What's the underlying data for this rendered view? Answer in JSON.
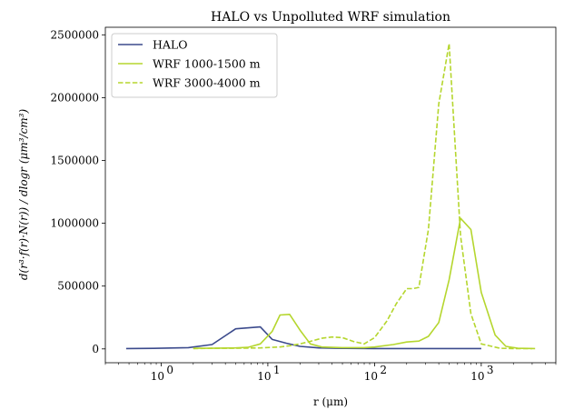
{
  "chart_data": {
    "type": "line",
    "title": "HALO vs Unpolluted WRF simulation",
    "xlabel": "r (μm)",
    "ylabel": "d(r³·f(r)·N(r)) / dlogr  (μm³/cm³)",
    "xscale": "log",
    "xlim": [
      0.3,
      5000
    ],
    "ylim": [
      -110000,
      2560000
    ],
    "grid": false,
    "legend_position": "top-left",
    "xtick_labels": [
      {
        "value": 1,
        "base": "10",
        "exp": "0"
      },
      {
        "value": 10,
        "base": "10",
        "exp": "1"
      },
      {
        "value": 100,
        "base": "10",
        "exp": "2"
      },
      {
        "value": 1000,
        "base": "10",
        "exp": "3"
      }
    ],
    "yticks": [
      0,
      500000,
      1000000,
      1500000,
      2000000,
      2500000
    ],
    "series": [
      {
        "name": "HALO",
        "color": "#3b4a8c",
        "dash": "solid",
        "x": [
          0.47,
          0.85,
          1.8,
          3.0,
          5.0,
          8.5,
          11,
          15,
          20,
          30,
          50,
          100,
          200,
          500,
          1000
        ],
        "y": [
          3000,
          4000,
          10000,
          35000,
          160000,
          175000,
          75000,
          45000,
          20000,
          8000,
          4000,
          3000,
          3000,
          3000,
          3000
        ]
      },
      {
        "name": "WRF 1000-1500 m",
        "color": "#b5d62e",
        "dash": "solid",
        "x": [
          2.0,
          3.0,
          5.0,
          6.5,
          8.5,
          11,
          13,
          16,
          20,
          25,
          32,
          50,
          80,
          100,
          150,
          200,
          260,
          320,
          400,
          500,
          640,
          800,
          1000,
          1350,
          1700,
          2200,
          3200
        ],
        "y": [
          5000,
          5000,
          8000,
          12000,
          40000,
          140000,
          270000,
          275000,
          150000,
          40000,
          15000,
          10000,
          10000,
          15000,
          35000,
          55000,
          62000,
          100000,
          210000,
          550000,
          1040000,
          950000,
          450000,
          110000,
          20000,
          5000,
          3000
        ]
      },
      {
        "name": "WRF 3000-4000 m",
        "color": "#b5d62e",
        "dash": "dashed",
        "x": [
          2.0,
          3.0,
          5.0,
          8.5,
          13,
          16,
          20,
          25,
          32,
          40,
          50,
          63,
          80,
          100,
          130,
          160,
          200,
          230,
          260,
          320,
          400,
          500,
          640,
          800,
          1000,
          1500,
          2000,
          3000
        ],
        "y": [
          3000,
          5000,
          5000,
          8000,
          15000,
          25000,
          40000,
          60000,
          85000,
          95000,
          90000,
          60000,
          40000,
          90000,
          220000,
          360000,
          480000,
          480000,
          490000,
          950000,
          1950000,
          2430000,
          900000,
          280000,
          40000,
          5000,
          3000,
          3000
        ]
      }
    ]
  }
}
